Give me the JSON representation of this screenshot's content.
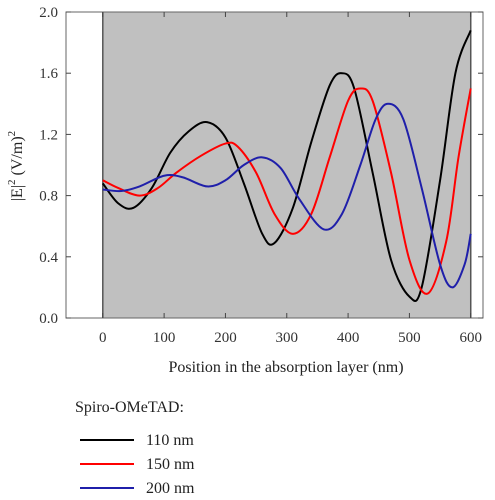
{
  "chart_data": {
    "type": "line",
    "title": "",
    "xlabel": "Position in the absorption layer (nm)",
    "ylabel_main": "|E|",
    "ylabel_sup": "2",
    "ylabel_unit": " (V/m)",
    "ylabel_unit_sup": "2",
    "xlim": [
      -60,
      620
    ],
    "ylim": [
      0.0,
      2.0
    ],
    "x_ticks": [
      0,
      100,
      200,
      300,
      400,
      500,
      600
    ],
    "y_ticks": [
      0.0,
      0.4,
      0.8,
      1.2,
      1.6,
      2.0
    ],
    "y_tick_labels": [
      "0.0",
      "0.4",
      "0.8",
      "1.2",
      "1.6",
      "2.0"
    ],
    "shaded_region": {
      "x_from": 0,
      "x_to": 600,
      "color": "#c0c0c0"
    },
    "legend_title": "Spiro-OMeTAD:",
    "legend_position": "bottom-below-plot",
    "grid": false,
    "series": [
      {
        "name": "110 nm",
        "color": "#000000",
        "x": [
          0,
          25,
          50,
          80,
          110,
          140,
          170,
          200,
          230,
          260,
          280,
          310,
          340,
          370,
          390,
          410,
          440,
          470,
          500,
          520,
          550,
          575,
          600
        ],
        "y": [
          0.88,
          0.75,
          0.72,
          0.85,
          1.08,
          1.22,
          1.28,
          1.18,
          0.88,
          0.55,
          0.49,
          0.72,
          1.15,
          1.52,
          1.6,
          1.5,
          0.95,
          0.38,
          0.14,
          0.2,
          0.9,
          1.6,
          1.88
        ]
      },
      {
        "name": "150 nm",
        "color": "#ff0000",
        "x": [
          0,
          25,
          60,
          90,
          120,
          160,
          200,
          220,
          250,
          280,
          310,
          340,
          370,
          400,
          420,
          440,
          470,
          500,
          530,
          560,
          580,
          600
        ],
        "y": [
          0.9,
          0.85,
          0.8,
          0.85,
          0.95,
          1.06,
          1.14,
          1.12,
          0.95,
          0.68,
          0.55,
          0.68,
          1.05,
          1.42,
          1.5,
          1.42,
          0.95,
          0.38,
          0.16,
          0.5,
          1.05,
          1.5
        ]
      },
      {
        "name": "200 nm",
        "color": "#1f1faa",
        "x": [
          0,
          30,
          60,
          100,
          130,
          170,
          200,
          230,
          260,
          290,
          320,
          360,
          390,
          420,
          445,
          465,
          490,
          520,
          550,
          570,
          590,
          600
        ],
        "y": [
          0.84,
          0.83,
          0.86,
          0.93,
          0.92,
          0.86,
          0.9,
          1.0,
          1.05,
          0.98,
          0.78,
          0.58,
          0.68,
          1.0,
          1.3,
          1.4,
          1.3,
          0.85,
          0.35,
          0.2,
          0.35,
          0.55
        ]
      }
    ]
  }
}
